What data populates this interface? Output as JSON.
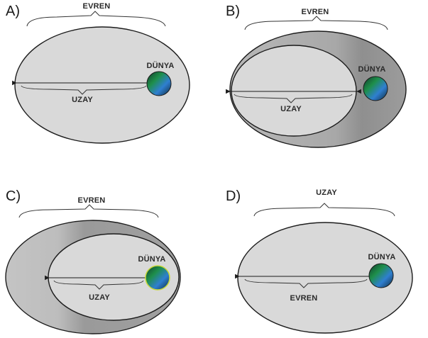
{
  "colors": {
    "ellipse_fill": "#d9d9d9",
    "outer_ring_fill": "#a5a5a5",
    "outline": "#1c1c1c",
    "globe_green": "#1e8f4a",
    "globe_blue": "#2f7fd1",
    "globe_dark": "#103a2a"
  },
  "panels": [
    {
      "letter": "A)",
      "top_label": "EVREN",
      "inner_label": "UZAY",
      "planet_label": "DÜNYA"
    },
    {
      "letter": "B)",
      "top_label": "EVREN",
      "inner_label": "UZAY",
      "planet_label": "DÜNYA"
    },
    {
      "letter": "C)",
      "top_label": "EVREN",
      "inner_label": "UZAY",
      "planet_label": "DÜNYA"
    },
    {
      "letter": "D)",
      "top_label": "UZAY",
      "inner_label": "EVREN",
      "planet_label": "DÜNYA"
    }
  ]
}
